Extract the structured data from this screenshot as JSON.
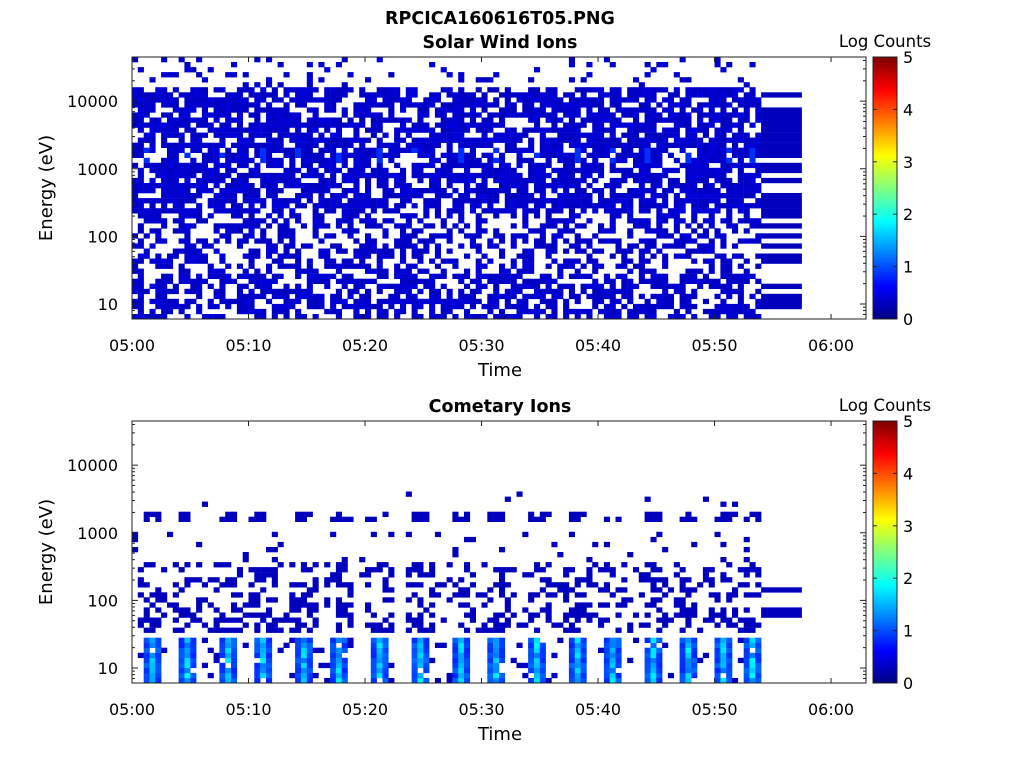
{
  "figure_title": "RPCICA160616T05.PNG",
  "chart_data": [
    {
      "type": "heatmap",
      "title": "Solar Wind Ions",
      "xlabel": "Time",
      "ylabel": "Energy (eV)",
      "x_range": [
        "05:00",
        "06:03"
      ],
      "x_ticks": [
        "05:00",
        "05:10",
        "05:20",
        "05:30",
        "05:40",
        "05:50",
        "06:00"
      ],
      "y_scale": "log",
      "y_range": [
        6,
        45000
      ],
      "y_ticks": [
        "10",
        "100",
        "1000",
        "10000"
      ],
      "colorbar": {
        "label": "Log Counts",
        "range": [
          0,
          5
        ],
        "ticks": [
          "0",
          "1",
          "2",
          "3",
          "4",
          "5"
        ],
        "colormap": "jet"
      },
      "data_window": {
        "start": "05:00",
        "end": "05:54",
        "fill_start": "05:54",
        "fill_end": "05:57.5"
      },
      "peak_energy_eV": 1500,
      "peak_times": [
        "05:01",
        "05:04.5",
        "05:07.5",
        "05:11",
        "05:14",
        "05:17.5",
        "05:21",
        "05:24",
        "05:28",
        "05:31",
        "05:34.5",
        "05:38",
        "05:41",
        "05:44",
        "05:47.5",
        "05:51",
        "05:53"
      ],
      "typical_level": 0.3,
      "peak_level": 0.85
    },
    {
      "type": "heatmap",
      "title": "Cometary Ions",
      "xlabel": "Time",
      "ylabel": "Energy (eV)",
      "x_range": [
        "05:00",
        "06:03"
      ],
      "x_ticks": [
        "05:00",
        "05:10",
        "05:20",
        "05:30",
        "05:40",
        "05:50",
        "06:00"
      ],
      "y_scale": "log",
      "y_range": [
        6,
        45000
      ],
      "y_ticks": [
        "10",
        "100",
        "1000",
        "10000"
      ],
      "colorbar": {
        "label": "Log Counts",
        "range": [
          0,
          5
        ],
        "ticks": [
          "0",
          "1",
          "2",
          "3",
          "4",
          "5"
        ],
        "colormap": "jet"
      },
      "data_window": {
        "start": "05:00",
        "end": "05:54",
        "fill_start": "05:54",
        "fill_end": "05:57.5"
      },
      "burst_times": [
        "05:01.5",
        "05:04.5",
        "05:08",
        "05:11",
        "05:14.5",
        "05:17.5",
        "05:21",
        "05:24.5",
        "05:28",
        "05:31",
        "05:34.5",
        "05:38",
        "05:41",
        "05:44.5",
        "05:47.5",
        "05:50.5",
        "05:53"
      ],
      "burst_energy_range_eV": [
        6,
        30
      ],
      "burst_peak_level": 1.4,
      "high_energy_band_eV": 1700
    }
  ]
}
